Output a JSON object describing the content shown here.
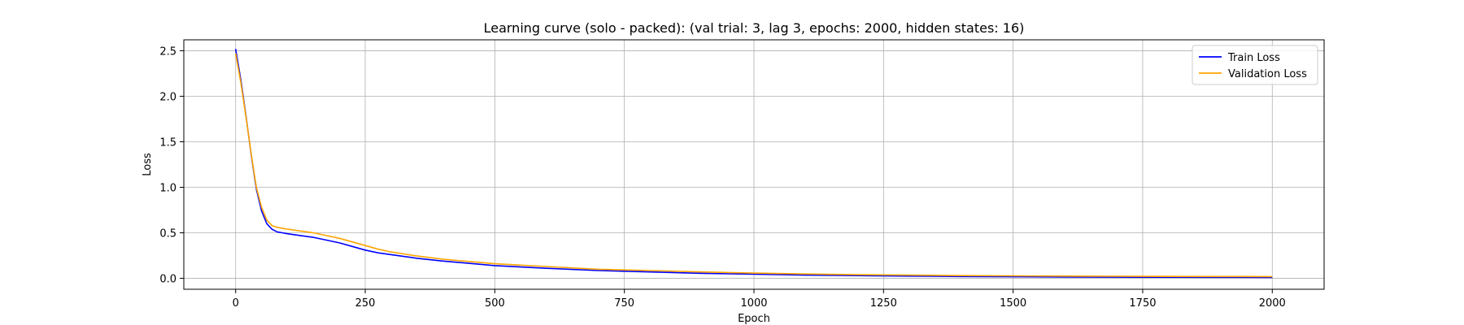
{
  "chart_data": {
    "type": "line",
    "title": "Learning curve (solo - packed): (val trial: 3, lag 3, epochs: 2000, hidden states: 16)",
    "xlabel": "Epoch",
    "ylabel": "Loss",
    "xlim": [
      -100,
      2100
    ],
    "ylim": [
      -0.12,
      2.62
    ],
    "xticks": [
      0,
      250,
      500,
      750,
      1000,
      1250,
      1500,
      1750,
      2000
    ],
    "xtick_labels": [
      "0",
      "250",
      "500",
      "750",
      "1000",
      "1250",
      "1500",
      "1750",
      "2000"
    ],
    "yticks": [
      0.0,
      0.5,
      1.0,
      1.5,
      2.0,
      2.5
    ],
    "ytick_labels": [
      "0.0",
      "0.5",
      "1.0",
      "1.5",
      "2.0",
      "2.5"
    ],
    "grid": true,
    "legend": "upper right",
    "series": [
      {
        "name": "Train Loss",
        "color": "#0000ff",
        "x": [
          0,
          10,
          20,
          30,
          40,
          50,
          60,
          70,
          80,
          90,
          100,
          125,
          150,
          175,
          200,
          225,
          250,
          275,
          300,
          350,
          400,
          450,
          500,
          600,
          700,
          800,
          900,
          1000,
          1100,
          1200,
          1300,
          1400,
          1500,
          1600,
          1700,
          1800,
          1900,
          2000
        ],
        "y": [
          2.52,
          2.18,
          1.78,
          1.36,
          0.98,
          0.74,
          0.6,
          0.54,
          0.51,
          0.5,
          0.49,
          0.47,
          0.45,
          0.42,
          0.39,
          0.35,
          0.31,
          0.28,
          0.26,
          0.22,
          0.19,
          0.165,
          0.14,
          0.11,
          0.085,
          0.07,
          0.055,
          0.045,
          0.035,
          0.03,
          0.025,
          0.02,
          0.017,
          0.015,
          0.013,
          0.012,
          0.011,
          0.01
        ]
      },
      {
        "name": "Validation Loss",
        "color": "#ffa500",
        "x": [
          0,
          10,
          20,
          30,
          40,
          50,
          60,
          70,
          80,
          90,
          100,
          125,
          150,
          175,
          200,
          225,
          250,
          275,
          300,
          350,
          400,
          450,
          500,
          600,
          700,
          800,
          900,
          1000,
          1100,
          1200,
          1300,
          1400,
          1500,
          1600,
          1700,
          1800,
          1900,
          2000
        ],
        "y": [
          2.47,
          2.15,
          1.77,
          1.37,
          1.0,
          0.78,
          0.64,
          0.58,
          0.56,
          0.55,
          0.54,
          0.52,
          0.5,
          0.47,
          0.44,
          0.4,
          0.36,
          0.32,
          0.29,
          0.245,
          0.21,
          0.185,
          0.16,
          0.13,
          0.1,
          0.085,
          0.07,
          0.058,
          0.048,
          0.04,
          0.035,
          0.03,
          0.027,
          0.025,
          0.023,
          0.021,
          0.02,
          0.019
        ]
      }
    ]
  }
}
